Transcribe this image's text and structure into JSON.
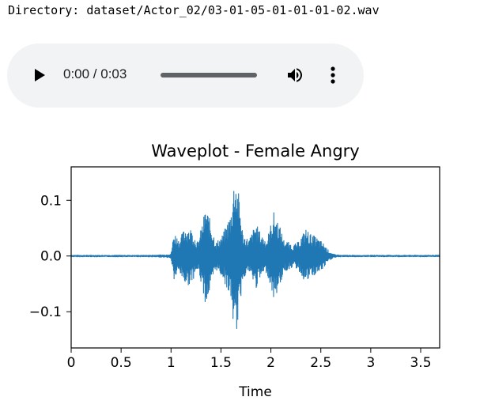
{
  "directory_text": "Directory: dataset/Actor_02/03-01-05-01-01-01-02.wav",
  "player": {
    "time": "0:00 / 0:03",
    "progress": 0,
    "icons": [
      "play-icon",
      "volume-icon",
      "more-vert-icon"
    ]
  },
  "chart_data": {
    "type": "line",
    "title": "Waveplot - Female Angry",
    "xlabel": "Time",
    "ylabel": "",
    "xlim": [
      0,
      3.69
    ],
    "ylim": [
      -0.165,
      0.16
    ],
    "xticks": [
      "0",
      "0.5",
      "1",
      "1.5",
      "2",
      "2.5",
      "3",
      "3.5"
    ],
    "yticks": [
      "0.1",
      "0.0",
      "−0.1"
    ],
    "series_color": "#1f77b4",
    "series": [
      {
        "envelope": [
          [
            0.0,
            0.002
          ],
          [
            0.5,
            0.002
          ],
          [
            0.75,
            0.002
          ],
          [
            0.95,
            0.003
          ],
          [
            1.0,
            0.005
          ],
          [
            1.03,
            0.045
          ],
          [
            1.08,
            0.03
          ],
          [
            1.15,
            0.055
          ],
          [
            1.2,
            0.05
          ],
          [
            1.27,
            0.025
          ],
          [
            1.35,
            0.09
          ],
          [
            1.4,
            0.06
          ],
          [
            1.45,
            0.025
          ],
          [
            1.52,
            0.04
          ],
          [
            1.6,
            0.08
          ],
          [
            1.64,
            0.155
          ],
          [
            1.68,
            0.11
          ],
          [
            1.72,
            0.04
          ],
          [
            1.78,
            0.03
          ],
          [
            1.85,
            0.06
          ],
          [
            1.9,
            0.04
          ],
          [
            1.96,
            0.03
          ],
          [
            2.03,
            0.08
          ],
          [
            2.08,
            0.06
          ],
          [
            2.13,
            0.03
          ],
          [
            2.18,
            0.025
          ],
          [
            2.22,
            0.02
          ],
          [
            2.27,
            0.025
          ],
          [
            2.35,
            0.05
          ],
          [
            2.4,
            0.04
          ],
          [
            2.45,
            0.035
          ],
          [
            2.52,
            0.025
          ],
          [
            2.58,
            0.01
          ],
          [
            2.62,
            0.004
          ],
          [
            2.7,
            0.002
          ],
          [
            3.0,
            0.002
          ],
          [
            3.69,
            0.002
          ]
        ]
      }
    ]
  }
}
